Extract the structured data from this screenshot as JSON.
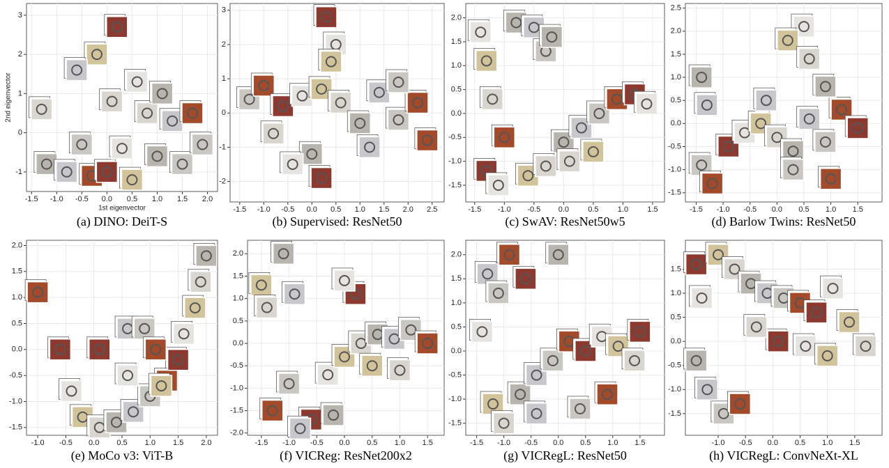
{
  "chart_data": [
    {
      "type": "scatter",
      "caption": "(a) DINO: DeiT-S",
      "x_label": "1st eigenvector",
      "y_label": "2nd eigenvector",
      "grid": true,
      "xlim": [
        -1.6,
        2.2
      ],
      "xticks": [
        -1.5,
        {
          "value": -1,
          "label": "-1.0"
        },
        -0.5,
        {
          "value": 0,
          "label": "0.0"
        },
        0.5,
        {
          "value": 1,
          "label": "1.0"
        },
        1.5,
        {
          "value": 2,
          "label": "2.0"
        }
      ],
      "ylim": [
        -1.5,
        3.3
      ],
      "yticks": [
        -1,
        0,
        1,
        2,
        3
      ],
      "x": [
        -1.3,
        -1.2,
        -0.8,
        -0.5,
        -0.3,
        0,
        0.3,
        0.5,
        0.8,
        1.0,
        1.3,
        1.5,
        1.7,
        0.2,
        0.6,
        -0.2,
        0.1,
        1.1,
        -0.6,
        1.9
      ],
      "y": [
        0.6,
        -0.8,
        -1.0,
        -0.3,
        -1.1,
        -1.0,
        -0.4,
        -1.2,
        0.5,
        -0.6,
        0.3,
        -0.8,
        0.5,
        2.7,
        1.3,
        2.0,
        0.8,
        1.0,
        1.6,
        -0.3
      ]
    },
    {
      "type": "scatter",
      "caption": "(b) Supervised: ResNet50",
      "grid": true,
      "xlim": [
        -1.7,
        2.75
      ],
      "xticks": [
        -1.5,
        {
          "value": -1,
          "label": "-1.0"
        },
        -0.5,
        {
          "value": 0,
          "label": "0.0"
        },
        0.5,
        {
          "value": 1,
          "label": "1.0"
        },
        1.5,
        {
          "value": 2,
          "label": "2.0"
        },
        2.5
      ],
      "ylim": [
        -2.6,
        3.2
      ],
      "yticks": [
        -2,
        -1,
        0,
        1,
        2,
        3
      ],
      "x": [
        -1.3,
        -1.0,
        -0.6,
        -0.2,
        0.2,
        0.6,
        1.0,
        1.4,
        1.8,
        2.2,
        0.3,
        0.5,
        0.4,
        -0.8,
        0.0,
        1.2,
        1.8,
        2.4,
        0.2,
        -0.4
      ],
      "y": [
        0.4,
        0.8,
        0.2,
        0.5,
        0.7,
        0.3,
        -0.3,
        0.6,
        -0.2,
        0.3,
        2.8,
        2.0,
        1.5,
        -0.6,
        -1.2,
        -1.0,
        0.9,
        -0.8,
        -1.9,
        -1.5
      ]
    },
    {
      "type": "scatter",
      "caption": "(c) SwAV: ResNet50w5",
      "grid": true,
      "xlim": [
        -1.65,
        1.7
      ],
      "xticks": [
        -1.5,
        {
          "value": -1,
          "label": "-1.0"
        },
        -0.5,
        {
          "value": 0,
          "label": "0.0"
        },
        0.5,
        {
          "value": 1,
          "label": "1.0"
        },
        1.5
      ],
      "ylim": [
        -1.85,
        2.3
      ],
      "yticks": [
        -1.5,
        {
          "value": -1,
          "label": "-1.0"
        },
        -0.5,
        {
          "value": 0,
          "label": "0.0"
        },
        0.5,
        {
          "value": 1,
          "label": "1.0"
        },
        1.5,
        {
          "value": 2,
          "label": "2.0"
        }
      ],
      "x": [
        -1.4,
        -1.3,
        -1.2,
        -0.8,
        -0.5,
        -0.3,
        -1.0,
        -1.3,
        -1.1,
        -0.6,
        -0.3,
        0.0,
        0.3,
        0.6,
        0.9,
        1.2,
        1.4,
        0.5,
        0.1,
        -0.2
      ],
      "y": [
        1.7,
        1.1,
        0.3,
        1.9,
        1.8,
        1.3,
        -0.5,
        -1.2,
        -1.5,
        -1.3,
        -1.1,
        -0.6,
        -0.3,
        0.0,
        0.3,
        0.4,
        0.2,
        -0.8,
        -1.0,
        1.6
      ]
    },
    {
      "type": "scatter",
      "caption": "(d) Barlow Twins: ResNet50",
      "grid": true,
      "xlim": [
        -1.7,
        1.95
      ],
      "xticks": [
        -1.5,
        {
          "value": -1,
          "label": "-1.0"
        },
        -0.5,
        {
          "value": 0,
          "label": "0.0"
        },
        0.5,
        {
          "value": 1,
          "label": "1.0"
        },
        1.5
      ],
      "ylim": [
        -1.7,
        2.6
      ],
      "yticks": [
        -1.5,
        {
          "value": -1,
          "label": "-1.0"
        },
        -0.5,
        {
          "value": 0,
          "label": "0.0"
        },
        0.5,
        {
          "value": 1,
          "label": "1.0"
        },
        1.5,
        {
          "value": 2,
          "label": "2.0"
        },
        2.5
      ],
      "x": [
        -1.4,
        -1.3,
        -1.4,
        -1.2,
        -0.9,
        -0.6,
        -0.3,
        0.0,
        0.3,
        0.6,
        0.9,
        1.2,
        1.5,
        0.5,
        0.2,
        0.6,
        0.9,
        -0.2,
        0.3,
        1.0
      ],
      "y": [
        1.0,
        0.4,
        -0.9,
        -1.3,
        -0.5,
        -0.2,
        0.0,
        -0.3,
        -0.6,
        0.1,
        -0.4,
        0.3,
        -0.1,
        2.1,
        1.8,
        1.4,
        0.8,
        0.5,
        -1.0,
        -1.2
      ]
    },
    {
      "type": "scatter",
      "caption": "(e) MoCo v3: ViT-B",
      "grid": true,
      "xlim": [
        -1.2,
        2.2
      ],
      "xticks": [
        {
          "value": -1,
          "label": "-1.0"
        },
        -0.5,
        {
          "value": 0,
          "label": "0.0"
        },
        0.5,
        {
          "value": 1,
          "label": "1.0"
        },
        1.5,
        {
          "value": 2,
          "label": "2.0"
        }
      ],
      "ylim": [
        -1.65,
        2.1
      ],
      "yticks": [
        -1.5,
        {
          "value": -1,
          "label": "-1.0"
        },
        -0.5,
        {
          "value": 0,
          "label": "0.0"
        },
        0.5,
        {
          "value": 1,
          "label": "1.0"
        },
        1.5,
        {
          "value": 2,
          "label": "2.0"
        }
      ],
      "x": [
        -1.0,
        -0.6,
        -0.4,
        -0.2,
        0.1,
        0.4,
        0.7,
        1.0,
        1.3,
        1.5,
        1.6,
        1.8,
        1.9,
        2.0,
        0.6,
        0.9,
        1.1,
        0.1,
        0.6,
        1.2
      ],
      "y": [
        1.1,
        0.0,
        -0.8,
        -1.3,
        -1.5,
        -1.4,
        -1.2,
        -0.9,
        -0.6,
        -0.2,
        0.3,
        0.8,
        1.3,
        1.8,
        0.4,
        0.4,
        0.0,
        0.0,
        -0.5,
        -0.7
      ]
    },
    {
      "type": "scatter",
      "caption": "(f) VICReg: ResNet200x2",
      "grid": true,
      "xlim": [
        -1.75,
        1.8
      ],
      "xticks": [
        -1.5,
        {
          "value": -1,
          "label": "-1.0"
        },
        -0.5,
        {
          "value": 0,
          "label": "0.0"
        },
        0.5,
        {
          "value": 1,
          "label": "1.0"
        },
        1.5
      ],
      "ylim": [
        -2.05,
        2.3
      ],
      "yticks": [
        {
          "value": -2,
          "label": "-2.0"
        },
        -1.5,
        {
          "value": -1,
          "label": "-1.0"
        },
        -0.5,
        {
          "value": 0,
          "label": "0.0"
        },
        0.5,
        {
          "value": 1,
          "label": "1.0"
        },
        1.5,
        {
          "value": 2,
          "label": "2.0"
        }
      ],
      "x": [
        -1.5,
        -1.4,
        -1.1,
        -0.9,
        -1.0,
        -1.3,
        -0.6,
        -0.3,
        0.0,
        0.3,
        0.6,
        0.9,
        1.2,
        1.5,
        0.2,
        0.0,
        0.5,
        1.0,
        -0.2,
        -0.8
      ],
      "y": [
        1.3,
        0.8,
        2.0,
        1.1,
        -0.9,
        -1.5,
        -1.7,
        -0.7,
        -0.3,
        0.0,
        0.2,
        0.1,
        0.3,
        0.0,
        1.1,
        1.4,
        -0.5,
        -0.6,
        -1.6,
        -1.9
      ]
    },
    {
      "type": "scatter",
      "caption": "(g) VICRegL: ResNet50",
      "grid": true,
      "xlim": [
        -1.7,
        1.95
      ],
      "xticks": [
        -1.5,
        {
          "value": -1,
          "label": "-1.0"
        },
        -0.5,
        {
          "value": 0,
          "label": "0.0"
        },
        0.5,
        {
          "value": 1,
          "label": "1.0"
        },
        1.5
      ],
      "ylim": [
        -1.75,
        2.3
      ],
      "yticks": [
        -1.5,
        {
          "value": -1,
          "label": "-1.0"
        },
        -0.5,
        {
          "value": 0,
          "label": "0.0"
        },
        0.5,
        {
          "value": 1,
          "label": "1.0"
        },
        1.5,
        {
          "value": 2,
          "label": "2.0"
        }
      ],
      "x": [
        -1.3,
        -1.1,
        -0.9,
        -0.6,
        -1.4,
        -1.2,
        -1.0,
        -0.7,
        -0.4,
        -0.1,
        0.2,
        0.5,
        0.8,
        1.1,
        1.4,
        0.0,
        -0.4,
        0.4,
        0.9,
        1.5
      ],
      "y": [
        1.6,
        1.2,
        2.0,
        1.5,
        0.4,
        -1.1,
        -1.5,
        -0.9,
        -0.5,
        -0.2,
        0.2,
        0.0,
        0.3,
        0.1,
        -0.2,
        2.0,
        -1.3,
        -1.2,
        -0.9,
        0.4
      ]
    },
    {
      "type": "scatter",
      "caption": "(h) VICRegL: ConvNeXt-XL",
      "grid": true,
      "xlim": [
        -1.6,
        2.0
      ],
      "xticks": [
        {
          "value": -1,
          "label": "-1.0"
        },
        -0.5,
        {
          "value": 0,
          "label": "0.0"
        },
        0.5,
        {
          "value": 1,
          "label": "1.0"
        },
        1.5
      ],
      "ylim": [
        -1.95,
        2.1
      ],
      "yticks": [
        -1.5,
        {
          "value": -1,
          "label": "-1.0"
        },
        -0.5,
        {
          "value": 0,
          "label": "0.0"
        },
        0.5,
        {
          "value": 1,
          "label": "1.0"
        },
        1.5
      ],
      "x": [
        -1.4,
        -1.3,
        -1.0,
        -0.7,
        -0.4,
        -0.1,
        0.2,
        0.5,
        0.8,
        1.1,
        1.4,
        1.7,
        -1.4,
        -1.2,
        -0.9,
        -0.6,
        0.1,
        0.6,
        1.0,
        -0.3
      ],
      "y": [
        1.6,
        0.9,
        1.8,
        1.5,
        1.2,
        1.0,
        0.9,
        0.8,
        0.6,
        1.1,
        0.4,
        -0.1,
        -0.4,
        -1.0,
        -1.5,
        -1.3,
        0.0,
        -0.1,
        -0.3,
        0.3
      ]
    }
  ]
}
